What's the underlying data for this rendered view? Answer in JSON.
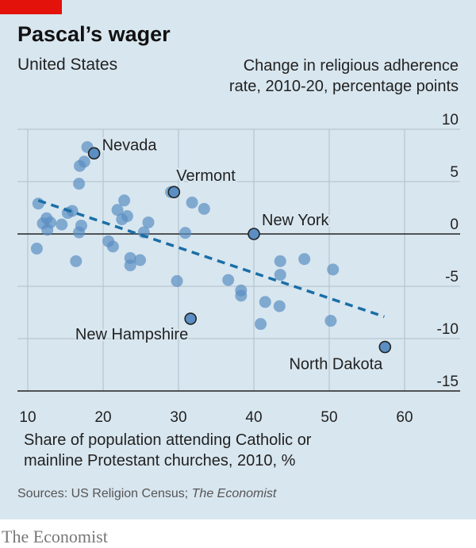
{
  "header": {
    "title": "Pascal’s wager",
    "subtitle": "United States",
    "y_unit_line1": "Change in religious adherence",
    "y_unit_line2": "rate, 2010-20, percentage points"
  },
  "footer": {
    "source_prefix": "Sources: US Religion Census; ",
    "source_italic": "The Economist",
    "brand": "The Economist"
  },
  "colors": {
    "background": "#d8e6ef",
    "point": "#5b8fc3",
    "trend": "#1a6ea6",
    "accent": "#e3120b"
  },
  "chart_data": {
    "type": "scatter",
    "xlabel_line1": "Share of population attending Catholic or",
    "xlabel_line2": "mainline Protestant churches, 2010, %",
    "ylabel": "Change in religious adherence rate, 2010-20, percentage points",
    "xlim": [
      8,
      65
    ],
    "ylim": [
      -15,
      10
    ],
    "xticks": [
      "10",
      "20",
      "30",
      "40",
      "50",
      "60"
    ],
    "yticks": [
      "10",
      "5",
      "0",
      "-5",
      "-10",
      "-15"
    ],
    "grid": true,
    "trendline": {
      "style": "dashed",
      "from": [
        11.4,
        3.2
      ],
      "to": [
        57.3,
        -7.9
      ]
    },
    "points": [
      [
        17.9,
        8.3
      ],
      [
        17.5,
        6.9
      ],
      [
        16.9,
        6.5
      ],
      [
        16.8,
        4.8
      ],
      [
        29.0,
        4.0
      ],
      [
        31.8,
        3.0
      ],
      [
        33.4,
        2.4
      ],
      [
        22.8,
        3.2
      ],
      [
        21.9,
        2.3
      ],
      [
        23.2,
        1.7
      ],
      [
        22.5,
        1.4
      ],
      [
        26.0,
        1.1
      ],
      [
        25.4,
        0.15
      ],
      [
        11.4,
        2.9
      ],
      [
        15.3,
        2.0
      ],
      [
        15.9,
        2.2
      ],
      [
        12.5,
        1.5
      ],
      [
        13.0,
        1.1
      ],
      [
        12.0,
        1.0
      ],
      [
        12.6,
        0.4
      ],
      [
        14.5,
        0.9
      ],
      [
        17.1,
        0.8
      ],
      [
        16.8,
        0.15
      ],
      [
        30.9,
        0.1
      ],
      [
        11.2,
        -1.4
      ],
      [
        16.4,
        -2.6
      ],
      [
        20.7,
        -0.7
      ],
      [
        21.3,
        -1.2
      ],
      [
        23.6,
        -2.3
      ],
      [
        23.6,
        -3.0
      ],
      [
        24.9,
        -2.5
      ],
      [
        29.8,
        -4.5
      ],
      [
        36.6,
        -4.4
      ],
      [
        38.3,
        -5.4
      ],
      [
        38.3,
        -5.9
      ],
      [
        41.5,
        -6.5
      ],
      [
        43.4,
        -6.9
      ],
      [
        40.9,
        -8.6
      ],
      [
        43.5,
        -2.6
      ],
      [
        43.5,
        -3.9
      ],
      [
        46.7,
        -2.4
      ],
      [
        50.5,
        -3.4
      ],
      [
        50.2,
        -8.3
      ]
    ],
    "labelled_points": [
      {
        "name": "Nevada",
        "x": 18.8,
        "y": 7.7
      },
      {
        "name": "Vermont",
        "x": 29.4,
        "y": 4.0
      },
      {
        "name": "New York",
        "x": 40.0,
        "y": 0.0
      },
      {
        "name": "New Hampshire",
        "x": 31.6,
        "y": -8.1
      },
      {
        "name": "North Dakota",
        "x": 57.4,
        "y": -10.8
      }
    ]
  }
}
